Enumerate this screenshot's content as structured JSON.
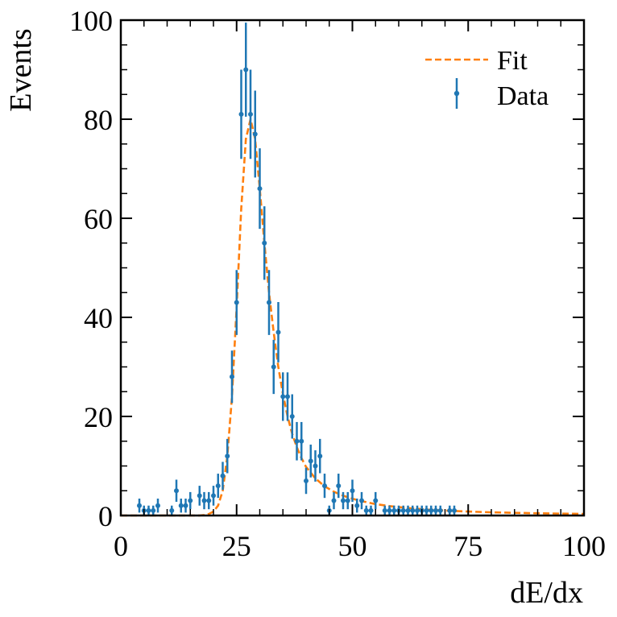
{
  "chart_data": {
    "type": "scatter",
    "title": "",
    "xlabel": "dE/dx",
    "ylabel": "Events",
    "xlim": [
      0,
      100
    ],
    "ylim": [
      0,
      100
    ],
    "xticks": [
      "0",
      "25",
      "50",
      "75",
      "100"
    ],
    "yticks": [
      "0",
      "20",
      "40",
      "60",
      "80",
      "100"
    ],
    "grid": false,
    "legend_position": "top-right",
    "colors": {
      "data": "#1f77b4",
      "fit": "#ff7f0e",
      "axis": "#000000"
    },
    "series": [
      {
        "name": "Data",
        "kind": "errorbar",
        "points": [
          {
            "x": 4,
            "y": 2
          },
          {
            "x": 5,
            "y": 1
          },
          {
            "x": 6,
            "y": 1
          },
          {
            "x": 7,
            "y": 1
          },
          {
            "x": 8,
            "y": 2
          },
          {
            "x": 11,
            "y": 1
          },
          {
            "x": 12,
            "y": 5
          },
          {
            "x": 13,
            "y": 2
          },
          {
            "x": 14,
            "y": 2
          },
          {
            "x": 15,
            "y": 3
          },
          {
            "x": 17,
            "y": 4
          },
          {
            "x": 18,
            "y": 3
          },
          {
            "x": 19,
            "y": 3
          },
          {
            "x": 20,
            "y": 4
          },
          {
            "x": 21,
            "y": 6
          },
          {
            "x": 22,
            "y": 8
          },
          {
            "x": 23,
            "y": 12
          },
          {
            "x": 24,
            "y": 28
          },
          {
            "x": 25,
            "y": 43
          },
          {
            "x": 26,
            "y": 81
          },
          {
            "x": 27,
            "y": 90
          },
          {
            "x": 28,
            "y": 81
          },
          {
            "x": 29,
            "y": 77
          },
          {
            "x": 30,
            "y": 66
          },
          {
            "x": 31,
            "y": 55
          },
          {
            "x": 32,
            "y": 43
          },
          {
            "x": 33,
            "y": 30
          },
          {
            "x": 34,
            "y": 37
          },
          {
            "x": 35,
            "y": 24
          },
          {
            "x": 36,
            "y": 24
          },
          {
            "x": 37,
            "y": 20
          },
          {
            "x": 38,
            "y": 15
          },
          {
            "x": 39,
            "y": 15
          },
          {
            "x": 40,
            "y": 7
          },
          {
            "x": 41,
            "y": 11
          },
          {
            "x": 42,
            "y": 10
          },
          {
            "x": 43,
            "y": 12
          },
          {
            "x": 44,
            "y": 6
          },
          {
            "x": 45,
            "y": 1
          },
          {
            "x": 46,
            "y": 3
          },
          {
            "x": 47,
            "y": 6
          },
          {
            "x": 48,
            "y": 3
          },
          {
            "x": 49,
            "y": 3
          },
          {
            "x": 50,
            "y": 5
          },
          {
            "x": 51,
            "y": 2
          },
          {
            "x": 52,
            "y": 3
          },
          {
            "x": 53,
            "y": 1
          },
          {
            "x": 54,
            "y": 1
          },
          {
            "x": 55,
            "y": 3
          },
          {
            "x": 57,
            "y": 1
          },
          {
            "x": 58,
            "y": 1
          },
          {
            "x": 59,
            "y": 1
          },
          {
            "x": 60,
            "y": 1
          },
          {
            "x": 61,
            "y": 1
          },
          {
            "x": 62,
            "y": 1
          },
          {
            "x": 63,
            "y": 1
          },
          {
            "x": 64,
            "y": 1
          },
          {
            "x": 65,
            "y": 1
          },
          {
            "x": 66,
            "y": 1
          },
          {
            "x": 67,
            "y": 1
          },
          {
            "x": 68,
            "y": 1
          },
          {
            "x": 69,
            "y": 1
          },
          {
            "x": 71,
            "y": 1
          },
          {
            "x": 72,
            "y": 1
          }
        ]
      },
      {
        "name": "Fit",
        "kind": "line",
        "style": "dashed",
        "x": [
          0,
          17,
          18,
          19,
          20,
          21,
          22,
          23,
          24,
          25,
          26,
          27,
          28,
          29,
          30,
          31,
          32,
          33,
          34,
          35,
          36,
          37,
          38,
          39,
          40,
          42,
          44,
          46,
          48,
          50,
          52,
          55,
          58,
          62,
          66,
          70,
          75,
          80,
          85,
          90,
          95,
          100
        ],
        "y": [
          0,
          0,
          0.1,
          0.3,
          0.8,
          2,
          5,
          12,
          24,
          42,
          62,
          76,
          80,
          76,
          66,
          55,
          45,
          37,
          30,
          24.5,
          20,
          16.5,
          13.8,
          11.6,
          9.8,
          7.5,
          5.9,
          4.8,
          4.0,
          3.4,
          2.9,
          2.3,
          1.9,
          1.5,
          1.2,
          1.0,
          0.8,
          0.65,
          0.55,
          0.45,
          0.38,
          0.32
        ]
      }
    ]
  }
}
